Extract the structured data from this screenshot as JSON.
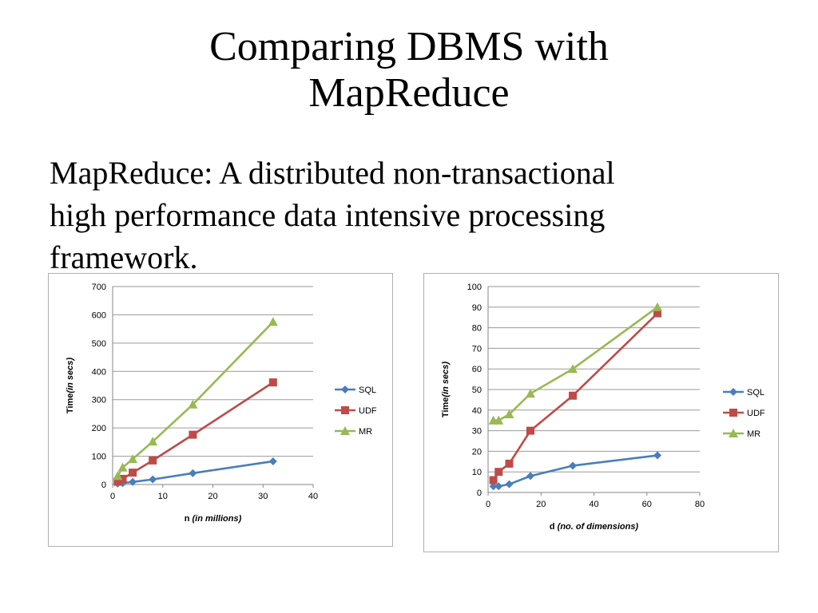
{
  "slide": {
    "title_line1": "Comparing DBMS with",
    "title_line2": "MapReduce",
    "body_line1": "MapReduce: A distributed non-transactional",
    "body_line2": "high performance data intensive processing",
    "body_line3": "framework."
  },
  "colors": {
    "SQL": "#4a7ebb",
    "UDF": "#be4b48",
    "MR": "#98b954"
  },
  "chart_data": [
    {
      "type": "line",
      "title": "",
      "xlabel_main": "n ",
      "xlabel_italic": "(in millions)",
      "ylabel_main": "Time",
      "ylabel_italic": "(in secs)",
      "xlim": [
        0,
        40
      ],
      "ylim": [
        0,
        700
      ],
      "xticks": [
        "0",
        "10",
        "20",
        "30",
        "40"
      ],
      "yticks": [
        "0",
        "100",
        "200",
        "300",
        "400",
        "500",
        "600",
        "700"
      ],
      "grid": true,
      "legend": "right",
      "series": [
        {
          "name": "SQL",
          "marker": "diamond",
          "x": [
            1,
            2,
            4,
            8,
            16,
            32
          ],
          "y": [
            3,
            5,
            9,
            18,
            40,
            82
          ]
        },
        {
          "name": "UDF",
          "marker": "square",
          "x": [
            1,
            2,
            4,
            8,
            16,
            32
          ],
          "y": [
            10,
            20,
            42,
            85,
            176,
            361
          ]
        },
        {
          "name": "MR",
          "marker": "triangle",
          "x": [
            1,
            2,
            4,
            8,
            16,
            32
          ],
          "y": [
            30,
            60,
            90,
            152,
            283,
            575
          ]
        }
      ]
    },
    {
      "type": "line",
      "title": "",
      "xlabel_main": "d ",
      "xlabel_italic": "(no. of dimensions)",
      "ylabel_main": "Time",
      "ylabel_italic": "(in secs)",
      "xlim": [
        0,
        80
      ],
      "ylim": [
        0,
        100
      ],
      "xticks": [
        "0",
        "20",
        "40",
        "60",
        "80"
      ],
      "yticks": [
        "0",
        "10",
        "20",
        "30",
        "40",
        "50",
        "60",
        "70",
        "80",
        "90",
        "100"
      ],
      "grid": true,
      "legend": "right",
      "series": [
        {
          "name": "SQL",
          "marker": "diamond",
          "x": [
            2,
            4,
            8,
            16,
            32,
            64
          ],
          "y": [
            3,
            3,
            4,
            8,
            13,
            18
          ]
        },
        {
          "name": "UDF",
          "marker": "square",
          "x": [
            2,
            4,
            8,
            16,
            32,
            64
          ],
          "y": [
            6,
            10,
            14,
            30,
            47,
            87
          ]
        },
        {
          "name": "MR",
          "marker": "triangle",
          "x": [
            2,
            4,
            8,
            16,
            32,
            64
          ],
          "y": [
            35,
            35,
            38,
            48,
            60,
            90
          ]
        }
      ]
    }
  ]
}
